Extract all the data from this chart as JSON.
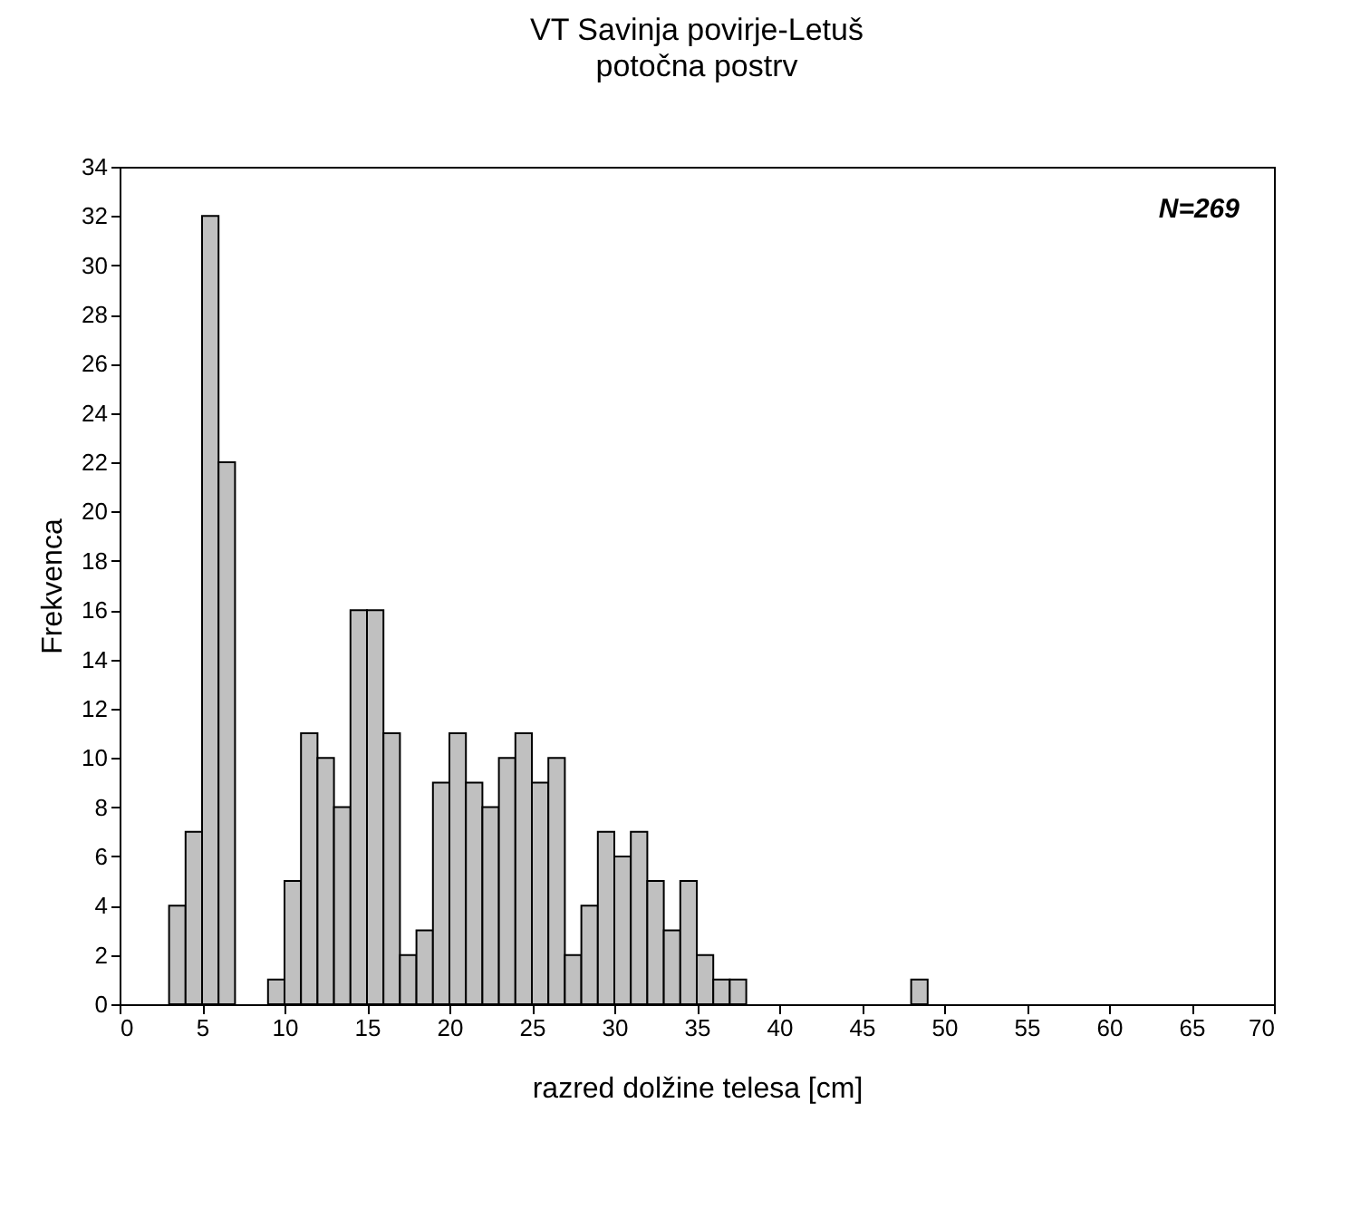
{
  "chart_data": {
    "type": "histogram",
    "title": "VT Savinja povirje-Letuš",
    "subtitle": "potočna postrv",
    "xlabel": "razred dolžine telesa [cm]",
    "ylabel": "Frekvenca",
    "annotations": [
      "N=269"
    ],
    "bins": [
      3,
      4,
      5,
      6,
      7,
      8,
      9,
      10,
      11,
      12,
      13,
      14,
      15,
      16,
      17,
      18,
      19,
      20,
      21,
      22,
      23,
      24,
      25,
      26,
      27,
      28,
      29,
      30,
      31,
      32,
      33,
      34,
      35,
      36,
      37,
      38,
      39,
      40,
      41,
      42,
      43,
      44,
      45,
      46,
      47,
      48,
      49
    ],
    "values": [
      4,
      7,
      32,
      22,
      0,
      0,
      1,
      5,
      11,
      10,
      8,
      16,
      16,
      11,
      2,
      3,
      9,
      11,
      9,
      8,
      10,
      11,
      9,
      10,
      2,
      4,
      7,
      6,
      7,
      5,
      3,
      5,
      2,
      1,
      1,
      0,
      0,
      0,
      0,
      0,
      0,
      0,
      0,
      0,
      0,
      1
    ],
    "color": "#c0c0c0",
    "xlim": [
      0,
      70
    ],
    "xticks": [
      0,
      5,
      10,
      15,
      20,
      25,
      30,
      35,
      40,
      45,
      50,
      55,
      60,
      65,
      70
    ],
    "ylim": [
      0,
      34
    ],
    "yticks": [
      0,
      2,
      4,
      6,
      8,
      10,
      12,
      14,
      16,
      18,
      20,
      22,
      24,
      26,
      28,
      30,
      32,
      34
    ],
    "grid": false
  }
}
